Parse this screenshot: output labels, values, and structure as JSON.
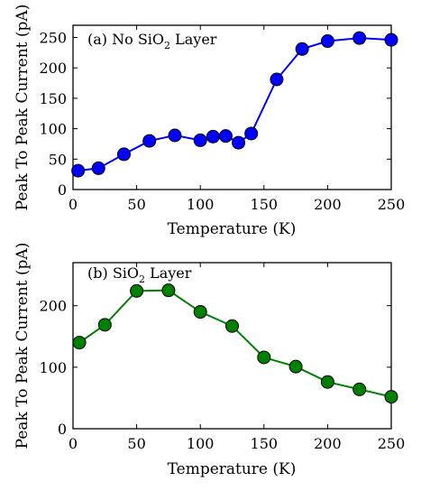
{
  "chart_data": [
    {
      "type": "line",
      "title_main": "(a) No SiO",
      "title_sub": "2",
      "title_tail": " Layer",
      "xlabel": "Temperature (K)",
      "ylabel": "Peak To Peak Current (pA)",
      "xlim": [
        0,
        250
      ],
      "ylim": [
        0,
        270
      ],
      "xticks": [
        0,
        50,
        100,
        150,
        200,
        250
      ],
      "yticks": [
        0,
        50,
        100,
        150,
        200,
        250
      ],
      "grid": false,
      "series": [
        {
          "color": "#0000ff",
          "x": [
            4,
            20,
            40,
            60,
            80,
            100,
            110,
            120,
            130,
            140,
            160,
            180,
            200,
            225,
            250
          ],
          "y": [
            31,
            35,
            58,
            80,
            89,
            81,
            87,
            88,
            77,
            92,
            181,
            231,
            244,
            249,
            246
          ]
        }
      ]
    },
    {
      "type": "line",
      "title_main": "(b) SiO",
      "title_sub": "2",
      "title_tail": " Layer",
      "xlabel": "Temperature (K)",
      "ylabel": "Peak To Peak Current (pA)",
      "xlim": [
        0,
        250
      ],
      "ylim": [
        0,
        270
      ],
      "xticks": [
        0,
        50,
        100,
        150,
        200,
        250
      ],
      "yticks": [
        0,
        100,
        200
      ],
      "grid": false,
      "series": [
        {
          "color": "#008000",
          "x": [
            5,
            25,
            50,
            75,
            100,
            125,
            150,
            175,
            200,
            225,
            250
          ],
          "y": [
            140,
            169,
            224,
            225,
            190,
            167,
            116,
            101,
            76,
            64,
            52
          ]
        }
      ]
    }
  ]
}
